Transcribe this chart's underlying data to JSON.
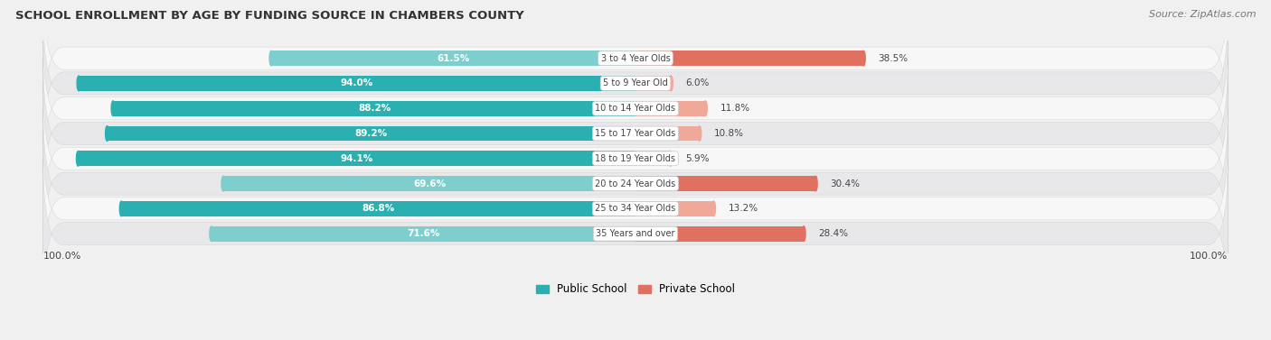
{
  "title": "SCHOOL ENROLLMENT BY AGE BY FUNDING SOURCE IN CHAMBERS COUNTY",
  "source": "Source: ZipAtlas.com",
  "categories": [
    "3 to 4 Year Olds",
    "5 to 9 Year Old",
    "10 to 14 Year Olds",
    "15 to 17 Year Olds",
    "18 to 19 Year Olds",
    "20 to 24 Year Olds",
    "25 to 34 Year Olds",
    "35 Years and over"
  ],
  "public_values": [
    61.5,
    94.0,
    88.2,
    89.2,
    94.1,
    69.6,
    86.8,
    71.6
  ],
  "private_values": [
    38.5,
    6.0,
    11.8,
    10.8,
    5.9,
    30.4,
    13.2,
    28.4
  ],
  "public_color_dark": "#2ab0b0",
  "public_color_light": "#7ecece",
  "private_color_dark": "#e07060",
  "private_color_light": "#f0a898",
  "bg_color": "#f0f0f0",
  "row_bg_light": "#f7f7f7",
  "row_bg_dark": "#e8e8ea",
  "label_color_white": "#ffffff",
  "label_color_dark": "#444444",
  "center_label_bg": "#ffffff",
  "axis_label_left": "100.0%",
  "axis_label_right": "100.0%",
  "legend_public": "Public School",
  "legend_private": "Private School",
  "pub_threshold": 75.0,
  "priv_threshold": 20.0
}
